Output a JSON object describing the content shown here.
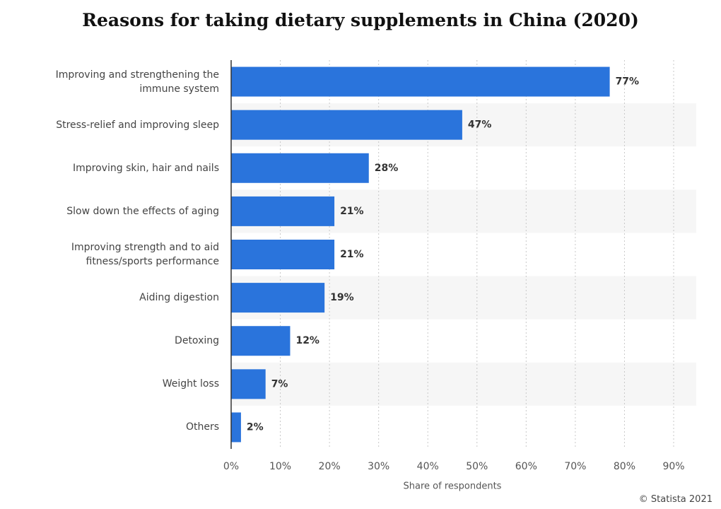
{
  "chart_data": {
    "type": "hbar",
    "title": "Reasons for taking dietary supplements in China (2020)",
    "categories": [
      "Improving and strengthening the immune system",
      "Stress-relief and improving sleep",
      "Improving skin, hair and nails",
      "Slow down the effects of aging",
      "Improving strength and to aid fitness/sports performance",
      "Aiding digestion",
      "Detoxing",
      "Weight loss",
      "Others"
    ],
    "values": [
      77,
      47,
      28,
      21,
      21,
      19,
      12,
      7,
      2
    ],
    "value_labels": [
      "77%",
      "47%",
      "28%",
      "21%",
      "21%",
      "19%",
      "12%",
      "7%",
      "2%"
    ],
    "color": "#2a74dc",
    "xlabel": "Share of respondents",
    "xlim": [
      0,
      90
    ],
    "xticks": [
      {
        "value": 0,
        "label": "0%"
      },
      {
        "value": 10,
        "label": "10%"
      },
      {
        "value": 20,
        "label": "20%"
      },
      {
        "value": 30,
        "label": "30%"
      },
      {
        "value": 40,
        "label": "40%"
      },
      {
        "value": 50,
        "label": "50%"
      },
      {
        "value": 60,
        "label": "60%"
      },
      {
        "value": 70,
        "label": "70%"
      },
      {
        "value": 80,
        "label": "80%"
      },
      {
        "value": 90,
        "label": "90%"
      }
    ],
    "grid": true,
    "source": "© Statista 2021"
  }
}
